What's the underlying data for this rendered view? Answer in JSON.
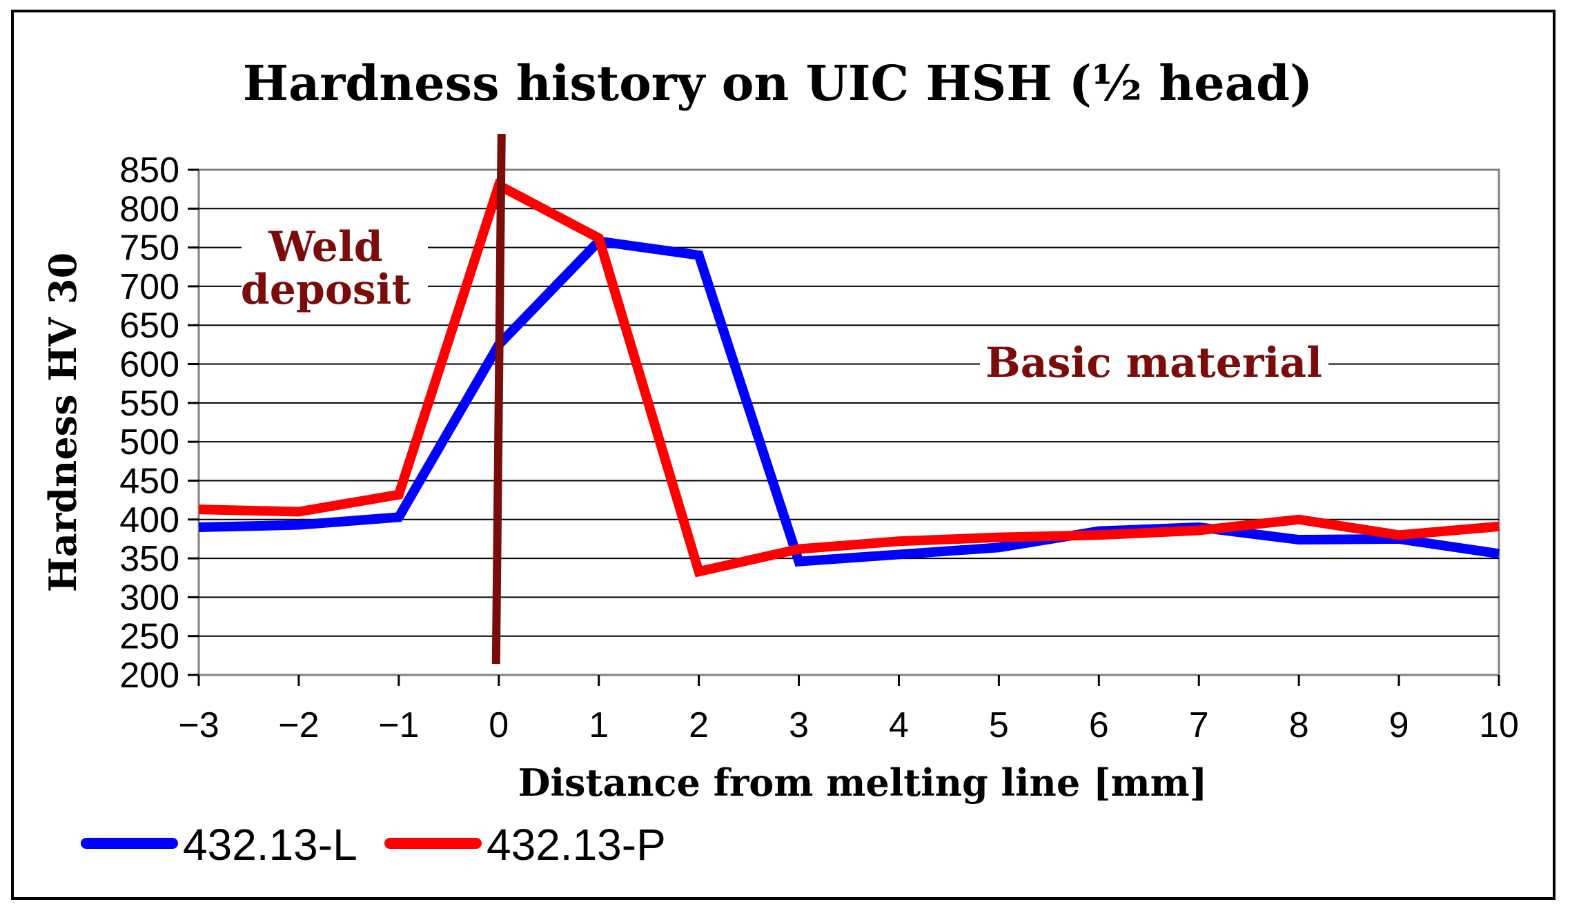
{
  "chart_data": {
    "type": "line",
    "title": "Hardness history on UIC HSH (½ head)",
    "xlabel": "Distance from melting line [mm]",
    "ylabel": "Hardness HV 30",
    "x": [
      -3,
      -2,
      -1,
      0,
      1,
      2,
      3,
      4,
      5,
      6,
      7,
      8,
      9,
      10
    ],
    "x_tick_labels": [
      "−3",
      "−2",
      "−1",
      "0",
      "1",
      "2",
      "3",
      "4",
      "5",
      "6",
      "7",
      "8",
      "9",
      "10"
    ],
    "y_ticks": [
      200,
      250,
      300,
      350,
      400,
      450,
      500,
      550,
      600,
      650,
      700,
      750,
      800,
      850
    ],
    "xlim": [
      -3,
      10
    ],
    "ylim": [
      200,
      850
    ],
    "grid": true,
    "legend_position": "bottom-left",
    "series": [
      {
        "name": "432.13-L",
        "color": "#0000ff",
        "values": [
          390,
          393,
          403,
          625,
          758,
          740,
          346,
          355,
          364,
          385,
          390,
          374,
          375,
          356
        ]
      },
      {
        "name": "432.13-P",
        "color": "#ff0000",
        "values": [
          413,
          410,
          432,
          830,
          762,
          333,
          362,
          372,
          377,
          380,
          386,
          400,
          380,
          391
        ]
      }
    ],
    "melting_line": {
      "x": 0,
      "color": "#7a0c0c"
    },
    "annotations": [
      {
        "text_lines": [
          "Weld",
          "deposit"
        ],
        "anchor_x": -1.7,
        "anchor_y": 720
      },
      {
        "text_lines": [
          "Basic material"
        ],
        "anchor_x": 6.5,
        "anchor_y": 600
      }
    ]
  }
}
